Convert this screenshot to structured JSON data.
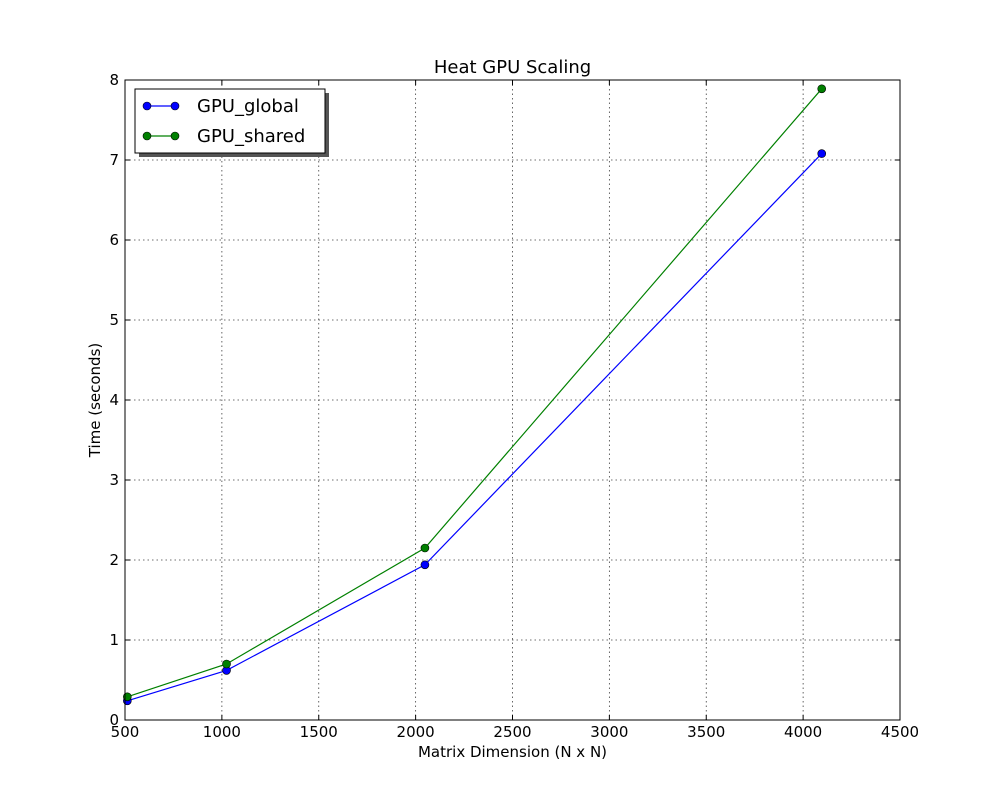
{
  "chart_data": {
    "type": "line",
    "title": "Heat GPU Scaling",
    "xlabel": "Matrix Dimension (N x N)",
    "ylabel": "Time (seconds)",
    "xlim": [
      500,
      4500
    ],
    "ylim": [
      0,
      8
    ],
    "xticks": [
      500,
      1000,
      1500,
      2000,
      2500,
      3000,
      3500,
      4000,
      4500
    ],
    "yticks": [
      0,
      1,
      2,
      3,
      4,
      5,
      6,
      7,
      8
    ],
    "xtick_labels": [
      "500",
      "1000",
      "1500",
      "2000",
      "2500",
      "3000",
      "3500",
      "4000",
      "4500"
    ],
    "ytick_labels": [
      "0",
      "1",
      "2",
      "3",
      "4",
      "5",
      "6",
      "7",
      "8"
    ],
    "grid": true,
    "legend_position": "top-left",
    "series": [
      {
        "name": "GPU_global",
        "color": "#0000ff",
        "marker": "circle",
        "x": [
          512,
          1024,
          2048,
          4096
        ],
        "y": [
          0.24,
          0.62,
          1.94,
          7.08
        ]
      },
      {
        "name": "GPU_shared",
        "color": "#008000",
        "marker": "circle",
        "x": [
          512,
          1024,
          2048,
          4096
        ],
        "y": [
          0.29,
          0.7,
          2.15,
          7.89
        ]
      }
    ]
  }
}
